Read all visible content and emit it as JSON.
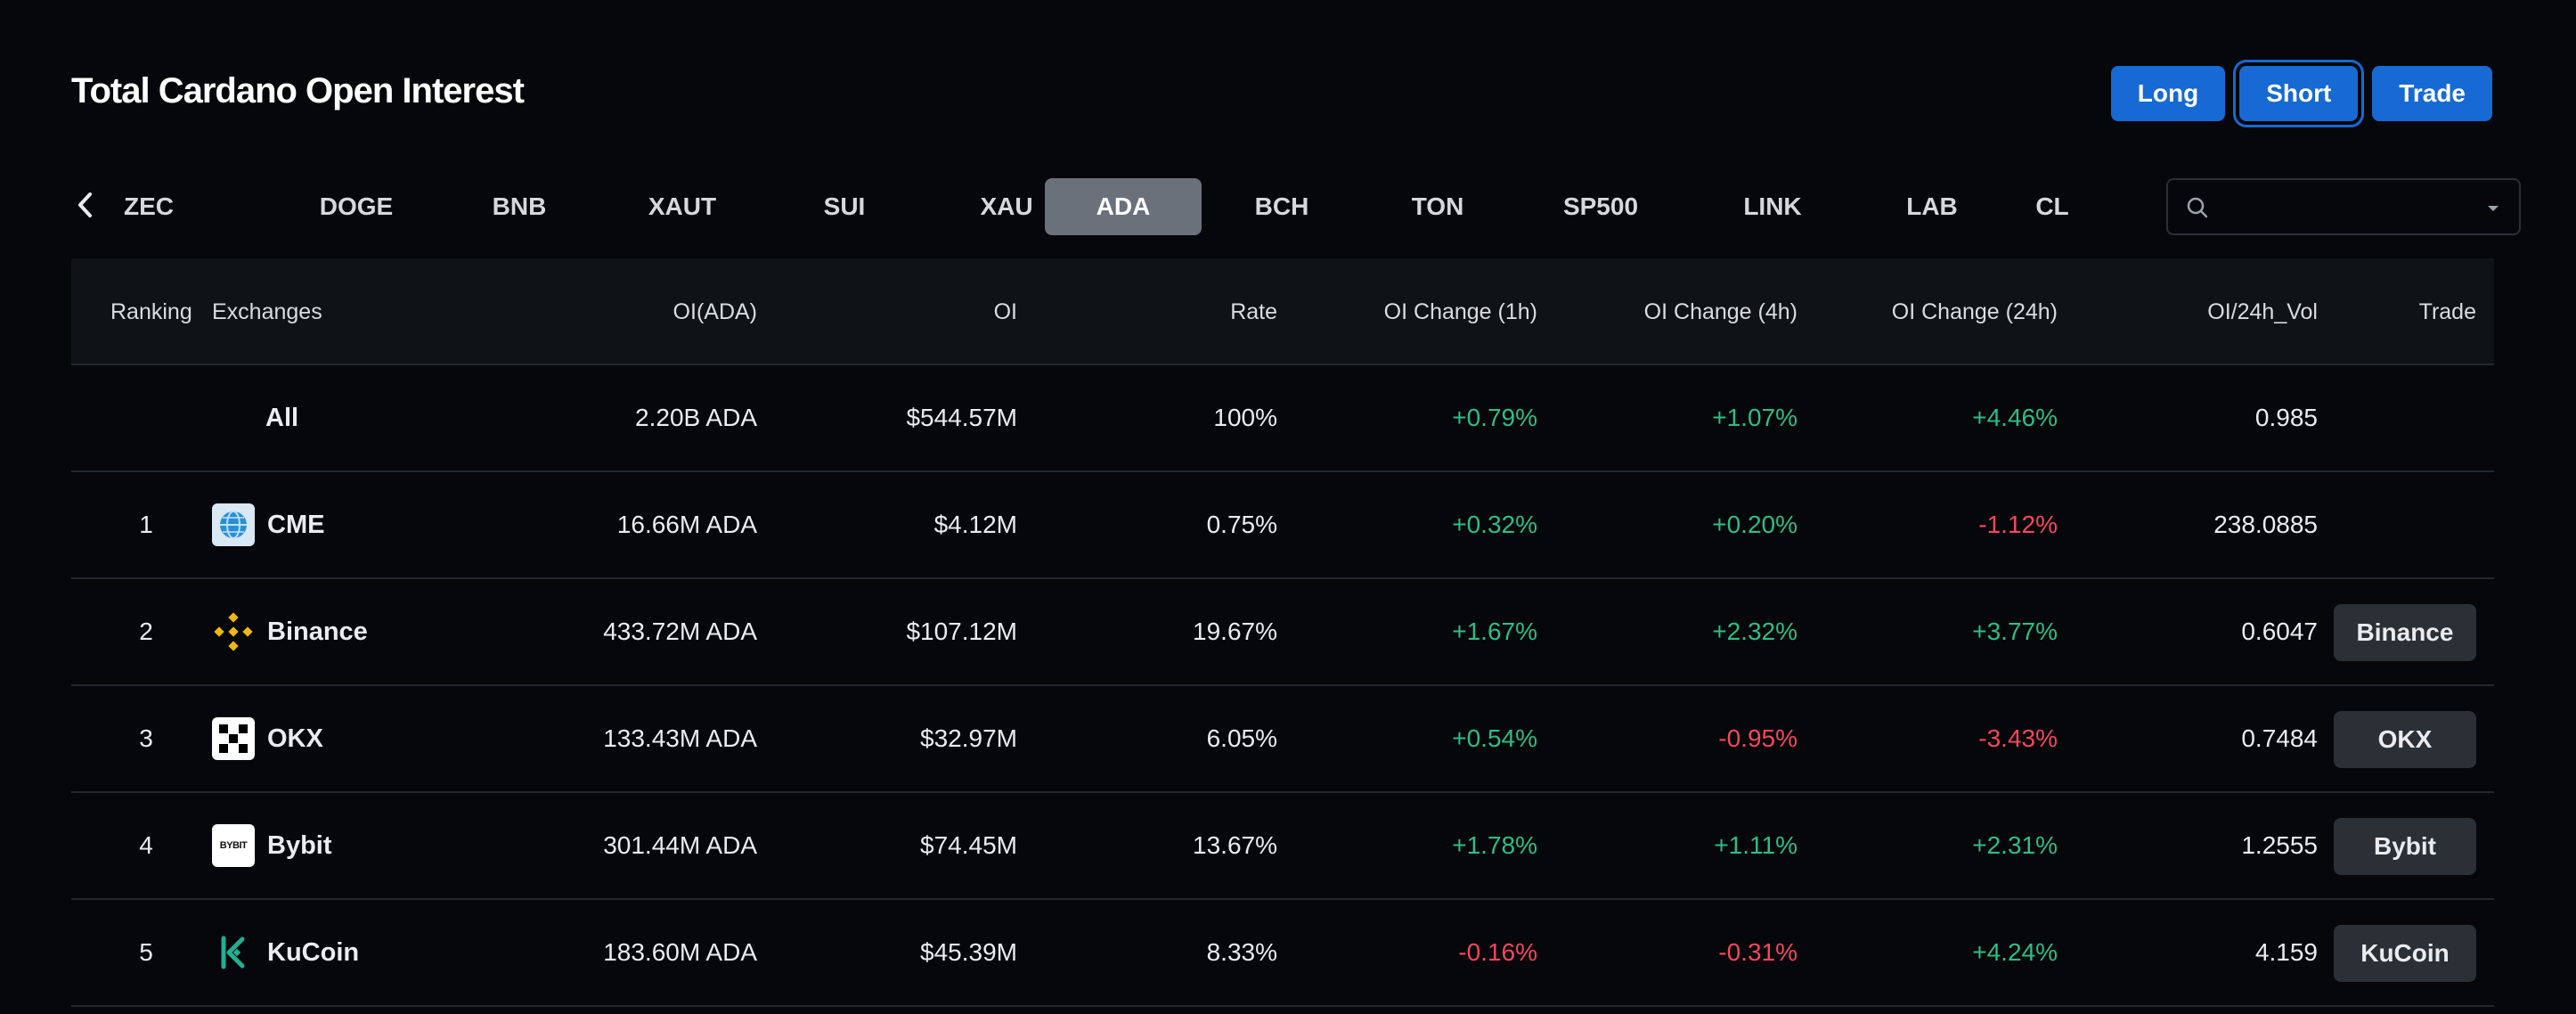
{
  "page_title": "Total Cardano Open Interest",
  "actions": {
    "long": "Long",
    "short": "Short",
    "trade": "Trade"
  },
  "tabs": [
    "ZEC",
    "DOGE",
    "BNB",
    "XAUT",
    "SUI",
    "XAU",
    "ADA",
    "BCH",
    "TON",
    "SP500",
    "LINK",
    "LAB",
    "CL"
  ],
  "active_tab": "ADA",
  "search": {
    "value": "",
    "placeholder": ""
  },
  "columns": {
    "ranking": "Ranking",
    "exchanges": "Exchanges",
    "oi_ada": "OI(ADA)",
    "oi": "OI",
    "rate": "Rate",
    "chg1h": "OI Change (1h)",
    "chg4h": "OI Change (4h)",
    "chg24h": "OI Change (24h)",
    "oi_vol": "OI/24h_Vol",
    "trade": "Trade"
  },
  "all_row": {
    "label": "All",
    "oi_ada": "2.20B ADA",
    "oi": "$544.57M",
    "rate": "100%",
    "chg1h": "+0.79%",
    "chg4h": "+1.07%",
    "chg24h": "+4.46%",
    "oi_vol": "0.985"
  },
  "rows": [
    {
      "rank": "1",
      "exchange": "CME",
      "logo": "cme-globe-icon",
      "oi_ada": "16.66M ADA",
      "oi": "$4.12M",
      "rate": "0.75%",
      "chg1h": "+0.32%",
      "chg4h": "+0.20%",
      "chg24h": "-1.12%",
      "oi_vol": "238.0885",
      "trade": ""
    },
    {
      "rank": "2",
      "exchange": "Binance",
      "logo": "binance-icon",
      "oi_ada": "433.72M ADA",
      "oi": "$107.12M",
      "rate": "19.67%",
      "chg1h": "+1.67%",
      "chg4h": "+2.32%",
      "chg24h": "+3.77%",
      "oi_vol": "0.6047",
      "trade": "Binance"
    },
    {
      "rank": "3",
      "exchange": "OKX",
      "logo": "okx-icon",
      "oi_ada": "133.43M ADA",
      "oi": "$32.97M",
      "rate": "6.05%",
      "chg1h": "+0.54%",
      "chg4h": "-0.95%",
      "chg24h": "-3.43%",
      "oi_vol": "0.7484",
      "trade": "OKX"
    },
    {
      "rank": "4",
      "exchange": "Bybit",
      "logo": "bybit-icon",
      "logo_text": "BYBIT",
      "oi_ada": "301.44M ADA",
      "oi": "$74.45M",
      "rate": "13.67%",
      "chg1h": "+1.78%",
      "chg4h": "+1.11%",
      "chg24h": "+2.31%",
      "oi_vol": "1.2555",
      "trade": "Bybit"
    },
    {
      "rank": "5",
      "exchange": "KuCoin",
      "logo": "kucoin-icon",
      "oi_ada": "183.60M ADA",
      "oi": "$45.39M",
      "rate": "8.33%",
      "chg1h": "-0.16%",
      "chg4h": "-0.31%",
      "chg24h": "+4.24%",
      "oi_vol": "4.159",
      "trade": "KuCoin"
    }
  ],
  "colors": {
    "positive": "#2ebd85",
    "negative": "#f6465d",
    "accent": "#1769d4",
    "active_tab": "#6b717a"
  }
}
